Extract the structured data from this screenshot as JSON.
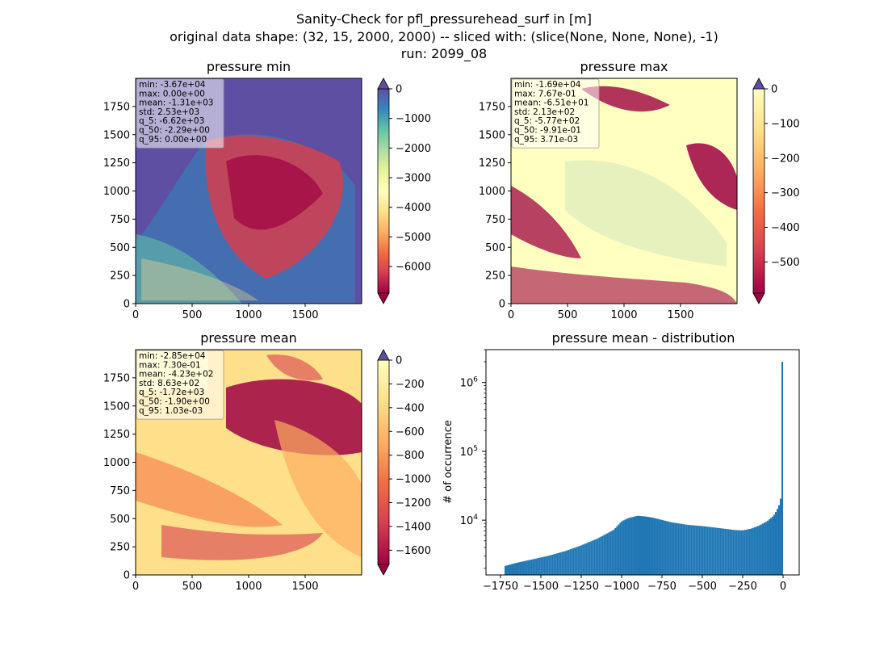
{
  "figure": {
    "suptitle_lines": [
      "Sanity-Check for pfl_pressurehead_surf in [m]",
      "original data shape: (32, 15, 2000, 2000) -- sliced with: (slice(None, None, None), -1)",
      "run: 2099_08"
    ]
  },
  "chart_data": [
    {
      "type": "heatmap",
      "title": "pressure min",
      "colormap": "Spectral",
      "x_ticks": [
        "0",
        "500",
        "1000",
        "1500"
      ],
      "y_ticks": [
        "0",
        "250",
        "500",
        "750",
        "1000",
        "1250",
        "1500",
        "1750"
      ],
      "xlim": [
        0,
        2000
      ],
      "ylim": [
        0,
        2000
      ],
      "colorbar": {
        "range": [
          -6900,
          0
        ],
        "ticks": [
          "0",
          "−1000",
          "−2000",
          "−3000",
          "−4000",
          "−5000",
          "−6000"
        ],
        "extend": "both"
      },
      "stats_box": [
        "min: -3.67e+04",
        "max: 0.00e+00",
        "mean: -1.31e+03",
        "std: 2.53e+03",
        "q_5: -6.62e+03",
        "q_50: -2.29e+00",
        "q_95: 0.00e+00"
      ]
    },
    {
      "type": "heatmap",
      "title": "pressure max",
      "colormap": "Spectral",
      "x_ticks": [
        "0",
        "500",
        "1000",
        "1500"
      ],
      "y_ticks": [
        "0",
        "250",
        "500",
        "750",
        "1000",
        "1250",
        "1500",
        "1750"
      ],
      "xlim": [
        0,
        2000
      ],
      "ylim": [
        0,
        2000
      ],
      "colorbar": {
        "range": [
          -590,
          0
        ],
        "ticks": [
          "0",
          "−100",
          "−200",
          "−300",
          "−400",
          "−500"
        ],
        "extend": "both"
      },
      "stats_box": [
        "min: -1.69e+04",
        "max: 7.67e-01",
        "mean: -6.51e+01",
        "std: 2.13e+02",
        "q_5: -5.77e+02",
        "q_50: -9.91e-01",
        "q_95: 3.71e-03"
      ]
    },
    {
      "type": "heatmap",
      "title": "pressure mean",
      "colormap": "Spectral",
      "x_ticks": [
        "0",
        "500",
        "1000",
        "1500"
      ],
      "y_ticks": [
        "0",
        "250",
        "500",
        "750",
        "1000",
        "1250",
        "1500",
        "1750"
      ],
      "xlim": [
        0,
        2000
      ],
      "ylim": [
        0,
        2000
      ],
      "colorbar": {
        "range": [
          -1720,
          0
        ],
        "ticks": [
          "0",
          "−200",
          "−400",
          "−600",
          "−800",
          "−1000",
          "−1200",
          "−1400",
          "−1600"
        ],
        "extend": "both"
      },
      "stats_box": [
        "min: -2.85e+04",
        "max: 7.30e-01",
        "mean: -4.23e+02",
        "std: 8.63e+02",
        "q_5: -1.72e+03",
        "q_50: -1.90e+00",
        "q_95: 1.03e-03"
      ]
    },
    {
      "type": "bar",
      "title": "pressure mean - distribution",
      "ylabel": "# of occurrence",
      "xlabel": "",
      "y_scale": "log",
      "x_ticks": [
        "−1750",
        "−1500",
        "−1250",
        "−1000",
        "−750",
        "−500",
        "−250",
        "0"
      ],
      "y_ticks": [
        "10^4",
        "10^5",
        "10^6"
      ],
      "xlim": [
        -1840,
        100
      ],
      "ylim": [
        1600,
        3000000
      ],
      "color": "#1f77b4",
      "profile": [
        [
          -1725,
          2150
        ],
        [
          -1650,
          2400
        ],
        [
          -1550,
          2700
        ],
        [
          -1450,
          3050
        ],
        [
          -1350,
          3550
        ],
        [
          -1250,
          4300
        ],
        [
          -1150,
          5400
        ],
        [
          -1050,
          7200
        ],
        [
          -1000,
          9600
        ],
        [
          -960,
          10700
        ],
        [
          -900,
          11600
        ],
        [
          -850,
          11300
        ],
        [
          -800,
          10800
        ],
        [
          -700,
          9400
        ],
        [
          -600,
          8600
        ],
        [
          -500,
          8200
        ],
        [
          -400,
          7700
        ],
        [
          -300,
          7200
        ],
        [
          -250,
          7100
        ],
        [
          -200,
          7500
        ],
        [
          -150,
          8300
        ],
        [
          -100,
          9600
        ],
        [
          -60,
          11500
        ],
        [
          -40,
          13700
        ],
        [
          -25,
          16500
        ],
        [
          -15,
          20500
        ],
        [
          -8,
          28000
        ]
      ],
      "spike": {
        "x": -3,
        "count": 2000000
      }
    }
  ]
}
